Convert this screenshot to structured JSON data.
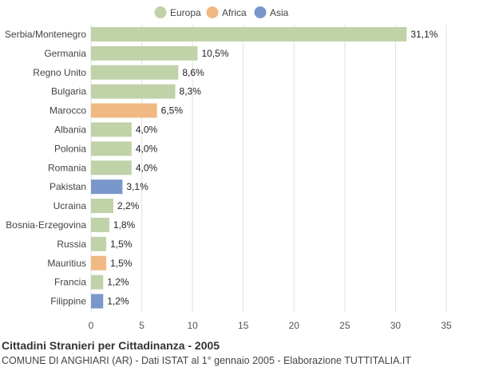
{
  "chart_data": {
    "type": "bar",
    "orientation": "horizontal",
    "title": "Cittadini Stranieri per Cittadinanza - 2005",
    "subtitle": "COMUNE DI ANGHIARI (AR) - Dati ISTAT al 1° gennaio 2005 - Elaborazione TUTTITALIA.IT",
    "legend": [
      {
        "name": "Europa",
        "color": "#c0d2a8"
      },
      {
        "name": "Africa",
        "color": "#f0b882"
      },
      {
        "name": "Asia",
        "color": "#7a97cc"
      }
    ],
    "categories": [
      "Serbia/Montenegro",
      "Germania",
      "Regno Unito",
      "Bulgaria",
      "Marocco",
      "Albania",
      "Polonia",
      "Romania",
      "Pakistan",
      "Ucraina",
      "Bosnia-Erzegovina",
      "Russia",
      "Mauritius",
      "Francia",
      "Filippine"
    ],
    "values": [
      31.1,
      10.5,
      8.6,
      8.3,
      6.5,
      4.0,
      4.0,
      4.0,
      3.1,
      2.2,
      1.8,
      1.5,
      1.5,
      1.2,
      1.2
    ],
    "value_labels": [
      "31,1%",
      "10,5%",
      "8,6%",
      "8,3%",
      "6,5%",
      "4,0%",
      "4,0%",
      "4,0%",
      "3,1%",
      "2,2%",
      "1,8%",
      "1,5%",
      "1,5%",
      "1,2%",
      "1,2%"
    ],
    "groups": [
      "Europa",
      "Europa",
      "Europa",
      "Europa",
      "Africa",
      "Europa",
      "Europa",
      "Europa",
      "Asia",
      "Europa",
      "Europa",
      "Europa",
      "Africa",
      "Europa",
      "Asia"
    ],
    "xlim": [
      0,
      35
    ],
    "xticks": [
      0,
      5,
      10,
      15,
      20,
      25,
      30,
      35
    ],
    "grid": true,
    "legend_position": "top-center"
  }
}
